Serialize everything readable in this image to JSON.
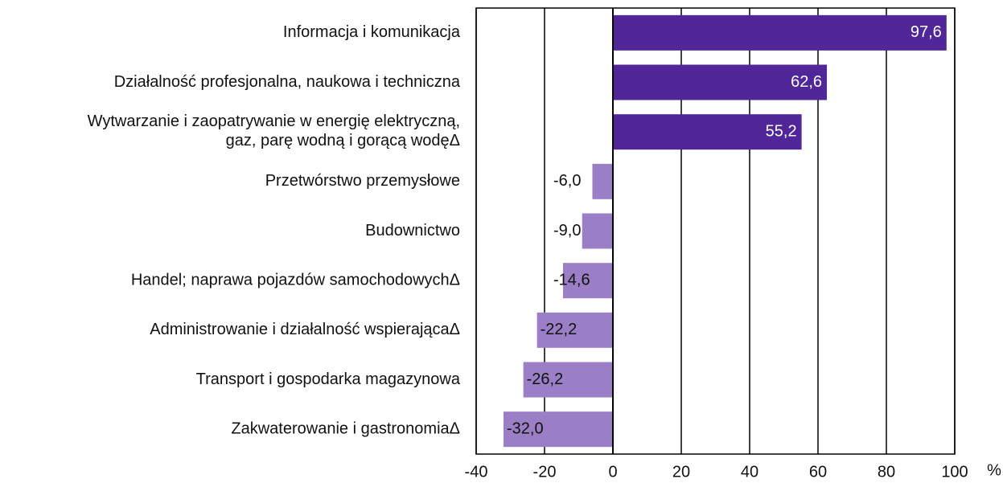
{
  "chart_data": {
    "type": "hbar",
    "categories": [
      "Informacja i komunikacja",
      "Działalność profesjonalna, naukowa i techniczna",
      "Wytwarzanie i zaopatrywanie w energię elektryczną,\ngaz, parę wodną i gorącą wodęΔ",
      "Przetwórstwo przemysłowe",
      "Budownictwo",
      "Handel; naprawa pojazdów samochodowychΔ",
      "Administrowanie i działalność wspierającaΔ",
      "Transport i gospodarka magazynowa",
      "Zakwaterowanie i gastronomiaΔ"
    ],
    "values": [
      97.6,
      62.6,
      55.2,
      -6.0,
      -9.0,
      -14.6,
      -22.2,
      -26.2,
      -32.0
    ],
    "value_labels": [
      "97,6",
      "62,6",
      "55,2",
      "-6,0",
      "-9,0",
      "-14,6",
      "-22,2",
      "-26,2",
      "-32,0"
    ],
    "colors": [
      "#512698",
      "#512698",
      "#512698",
      "#9b7fc6",
      "#9b7fc6",
      "#9b7fc6",
      "#9b7fc6",
      "#9b7fc6",
      "#9b7fc6"
    ],
    "xlim": [
      -40,
      100
    ],
    "xticks": [
      -40,
      -20,
      0,
      20,
      40,
      60,
      80,
      100
    ],
    "x_unit": "%",
    "grid": true
  }
}
